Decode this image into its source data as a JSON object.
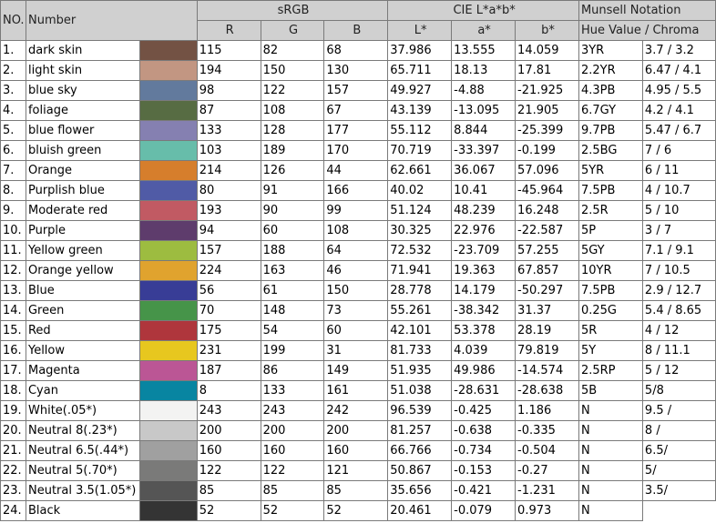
{
  "header": {
    "no": "NO.",
    "number": "Number",
    "srgb": "sRGB",
    "cielab": "CIE L*a*b*",
    "munsell": "Munsell Notation",
    "r": "R",
    "g": "G",
    "b": "B",
    "l": "L*",
    "a": "a*",
    "bstar": "b*",
    "hue_value_chroma": "Hue Value / Chroma"
  },
  "rows": [
    {
      "no": "1.",
      "name": "dark skin",
      "r": "115",
      "g": "82",
      "b": "68",
      "L": "37.986",
      "a": "13.555",
      "bs": "14.059",
      "hue": "3YR",
      "vc": "3.7 / 3.2"
    },
    {
      "no": "2.",
      "name": "light skin",
      "r": "194",
      "g": "150",
      "b": "130",
      "L": "65.711",
      "a": "18.13",
      "bs": "17.81",
      "hue": "2.2YR",
      "vc": "6.47 / 4.1"
    },
    {
      "no": "3.",
      "name": "blue sky",
      "r": "98",
      "g": "122",
      "b": "157",
      "L": "49.927",
      "a": "-4.88",
      "bs": "-21.925",
      "hue": "4.3PB",
      "vc": "4.95 / 5.5"
    },
    {
      "no": "4.",
      "name": "foliage",
      "r": "87",
      "g": "108",
      "b": "67",
      "L": "43.139",
      "a": "-13.095",
      "bs": "21.905",
      "hue": "6.7GY",
      "vc": "4.2 / 4.1"
    },
    {
      "no": "5.",
      "name": "blue flower",
      "r": "133",
      "g": "128",
      "b": "177",
      "L": "55.112",
      "a": "8.844",
      "bs": "-25.399",
      "hue": "9.7PB",
      "vc": "5.47 / 6.7"
    },
    {
      "no": "6.",
      "name": "bluish green",
      "r": "103",
      "g": "189",
      "b": "170",
      "L": "70.719",
      "a": "-33.397",
      "bs": "-0.199",
      "hue": "2.5BG",
      "vc": "7 / 6"
    },
    {
      "no": "7.",
      "name": "Orange",
      "r": "214",
      "g": "126",
      "b": "44",
      "L": "62.661",
      "a": "36.067",
      "bs": "57.096",
      "hue": "5YR",
      "vc": "6 / 11"
    },
    {
      "no": "8.",
      "name": "Purplish blue",
      "r": "80",
      "g": "91",
      "b": "166",
      "L": "40.02",
      "a": "10.41",
      "bs": "-45.964",
      "hue": "7.5PB",
      "vc": "4 / 10.7"
    },
    {
      "no": "9.",
      "name": "Moderate red",
      "r": "193",
      "g": "90",
      "b": "99",
      "L": "51.124",
      "a": "48.239",
      "bs": "16.248",
      "hue": "2.5R",
      "vc": "5 / 10"
    },
    {
      "no": "10.",
      "name": "Purple",
      "r": "94",
      "g": "60",
      "b": "108",
      "L": "30.325",
      "a": "22.976",
      "bs": "-22.587",
      "hue": "5P",
      "vc": "3 / 7"
    },
    {
      "no": "11.",
      "name": "Yellow green",
      "r": "157",
      "g": "188",
      "b": "64",
      "L": "72.532",
      "a": "-23.709",
      "bs": "57.255",
      "hue": "5GY",
      "vc": "7.1 / 9.1"
    },
    {
      "no": "12.",
      "name": "Orange yellow",
      "r": "224",
      "g": "163",
      "b": "46",
      "L": "71.941",
      "a": "19.363",
      "bs": "67.857",
      "hue": "10YR",
      "vc": "7 / 10.5"
    },
    {
      "no": "13.",
      "name": "Blue",
      "r": "56",
      "g": "61",
      "b": "150",
      "L": "28.778",
      "a": "14.179",
      "bs": "-50.297",
      "hue": "7.5PB",
      "vc": "2.9 / 12.7"
    },
    {
      "no": "14.",
      "name": "Green",
      "r": "70",
      "g": "148",
      "b": "73",
      "L": "55.261",
      "a": "-38.342",
      "bs": "31.37",
      "hue": "0.25G",
      "vc": "5.4 / 8.65"
    },
    {
      "no": "15.",
      "name": "Red",
      "r": "175",
      "g": "54",
      "b": "60",
      "L": "42.101",
      "a": "53.378",
      "bs": "28.19",
      "hue": "5R",
      "vc": "4 / 12"
    },
    {
      "no": "16.",
      "name": "Yellow",
      "r": "231",
      "g": "199",
      "b": "31",
      "L": "81.733",
      "a": "4.039",
      "bs": "79.819",
      "hue": "5Y",
      "vc": "8 / 11.1"
    },
    {
      "no": "17.",
      "name": "Magenta",
      "r": "187",
      "g": "86",
      "b": "149",
      "L": "51.935",
      "a": "49.986",
      "bs": "-14.574",
      "hue": "2.5RP",
      "vc": "5 / 12"
    },
    {
      "no": "18.",
      "name": "Cyan",
      "r": "8",
      "g": "133",
      "b": "161",
      "L": "51.038",
      "a": "-28.631",
      "bs": "-28.638",
      "hue": "5B",
      "vc": "5/8"
    },
    {
      "no": "19.",
      "name": "White(.05*)",
      "r": "243",
      "g": "243",
      "b": "242",
      "L": "96.539",
      "a": "-0.425",
      "bs": "1.186",
      "hue": "N",
      "vc": "9.5 /"
    },
    {
      "no": "20.",
      "name": "Neutral 8(.23*)",
      "r": "200",
      "g": "200",
      "b": "200",
      "L": "81.257",
      "a": "-0.638",
      "bs": "-0.335",
      "hue": "N",
      "vc": "8 /"
    },
    {
      "no": "21.",
      "name": "Neutral 6.5(.44*)",
      "r": "160",
      "g": "160",
      "b": "160",
      "L": "66.766",
      "a": "-0.734",
      "bs": "-0.504",
      "hue": "N",
      "vc": "6.5/"
    },
    {
      "no": "22.",
      "name": "Neutral 5(.70*)",
      "r": "122",
      "g": "122",
      "b": "121",
      "L": "50.867",
      "a": "-0.153",
      "bs": "-0.27",
      "hue": "N",
      "vc": "5/"
    },
    {
      "no": "23.",
      "name": "Neutral 3.5(1.05*)",
      "r": "85",
      "g": "85",
      "b": "85",
      "L": "35.656",
      "a": "-0.421",
      "bs": "-1.231",
      "hue": "N",
      "vc": "3.5/"
    },
    {
      "no": "24.",
      "name": "Black",
      "r": "52",
      "g": "52",
      "b": "52",
      "L": "20.461",
      "a": "-0.079",
      "bs": "0.973",
      "hue": "N",
      "vc": ""
    }
  ]
}
